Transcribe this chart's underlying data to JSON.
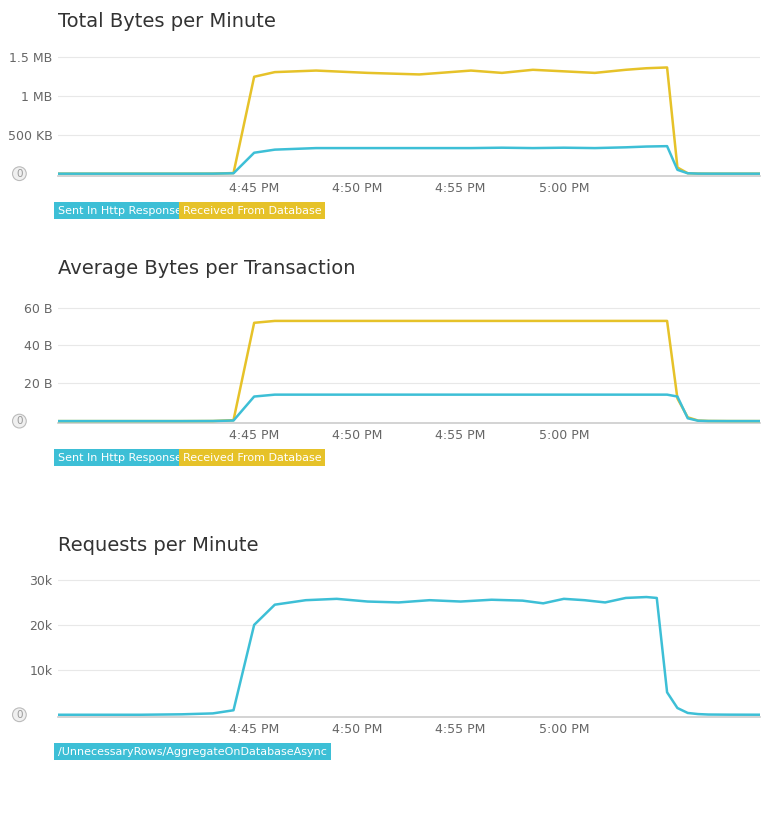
{
  "background_color": "#ffffff",
  "title_fontsize": 14,
  "tick_fontsize": 9,
  "chart1": {
    "title": "Total Bytes per Minute",
    "yticks": [
      500000,
      1000000,
      1500000
    ],
    "ytick_labels": [
      "500 KB",
      "1 MB",
      "1.5 MB"
    ],
    "ylim": [
      -30000,
      1750000
    ],
    "cyan_color": "#3dbfd6",
    "yellow_color": "#e6c229",
    "x_times": [
      0,
      8,
      12,
      15,
      17,
      19,
      21,
      25,
      30,
      35,
      40,
      43,
      46,
      49,
      52,
      55,
      57,
      59,
      60,
      61,
      62,
      63,
      65,
      70
    ],
    "cyan_values": [
      0,
      0,
      0,
      500,
      5000,
      270000,
      310000,
      330000,
      330000,
      330000,
      330000,
      335000,
      330000,
      335000,
      330000,
      340000,
      350000,
      355000,
      50000,
      5000,
      800,
      200,
      50,
      0
    ],
    "yellow_values": [
      0,
      0,
      0,
      800,
      8000,
      1250000,
      1310000,
      1330000,
      1300000,
      1280000,
      1330000,
      1300000,
      1340000,
      1320000,
      1300000,
      1340000,
      1360000,
      1370000,
      80000,
      6000,
      1000,
      300,
      80,
      0
    ]
  },
  "chart2": {
    "title": "Average Bytes per Transaction",
    "yticks": [
      20,
      40,
      60
    ],
    "ytick_labels": [
      "20 B",
      "40 B",
      "60 B"
    ],
    "ylim": [
      -1,
      72
    ],
    "cyan_color": "#3dbfd6",
    "yellow_color": "#e6c229",
    "x_times": [
      0,
      8,
      12,
      15,
      17,
      19,
      21,
      25,
      30,
      35,
      40,
      43,
      46,
      49,
      52,
      55,
      57,
      59,
      60,
      61,
      62,
      63,
      65,
      70
    ],
    "cyan_values": [
      0,
      0,
      0,
      0.05,
      0.3,
      13,
      14,
      14,
      14,
      14,
      14,
      14,
      14,
      14,
      14,
      14,
      14,
      14,
      13,
      1.5,
      0.2,
      0.05,
      0.01,
      0
    ],
    "yellow_values": [
      0,
      0,
      0,
      0.05,
      0.5,
      52,
      53,
      53,
      53,
      53,
      53,
      53,
      53,
      53,
      53,
      53,
      53,
      53,
      12,
      2,
      0.3,
      0.08,
      0.02,
      0
    ]
  },
  "chart3": {
    "title": "Requests per Minute",
    "yticks": [
      10000,
      20000,
      30000
    ],
    "ytick_labels": [
      "10k",
      "20k",
      "30k"
    ],
    "ylim": [
      -500,
      34000
    ],
    "cyan_color": "#3dbfd6",
    "x_times": [
      0,
      8,
      12,
      15,
      17,
      19,
      21,
      24,
      27,
      30,
      33,
      36,
      39,
      42,
      45,
      47,
      49,
      51,
      53,
      55,
      57,
      58,
      59,
      60,
      61,
      62,
      63,
      65,
      70
    ],
    "cyan_values": [
      0,
      0,
      100,
      300,
      1000,
      20000,
      24500,
      25500,
      25800,
      25200,
      25000,
      25500,
      25200,
      25600,
      25400,
      24800,
      25800,
      25500,
      25000,
      26000,
      26200,
      26000,
      5000,
      1500,
      400,
      150,
      50,
      20,
      0
    ]
  },
  "legend1": [
    {
      "label": "Sent In Http Response",
      "color": "#3dbfd6"
    },
    {
      "label": "Received From Database",
      "color": "#e6c229"
    }
  ],
  "legend2": [
    {
      "label": "Sent In Http Response",
      "color": "#3dbfd6"
    },
    {
      "label": "Received From Database",
      "color": "#e6c229"
    }
  ],
  "legend3": [
    {
      "label": "/UnnecessaryRows/AggregateOnDatabaseAsync",
      "color": "#3dbfd6"
    }
  ],
  "xtick_positions": [
    19,
    29,
    39,
    49,
    59
  ],
  "xtick_labels": [
    "4:45 PM",
    "4:50 PM",
    "4:55 PM",
    "5:00 PM",
    ""
  ],
  "xmin": 0,
  "xmax": 68,
  "grid_color": "#e8e8e8",
  "axis_line_color": "#cccccc"
}
